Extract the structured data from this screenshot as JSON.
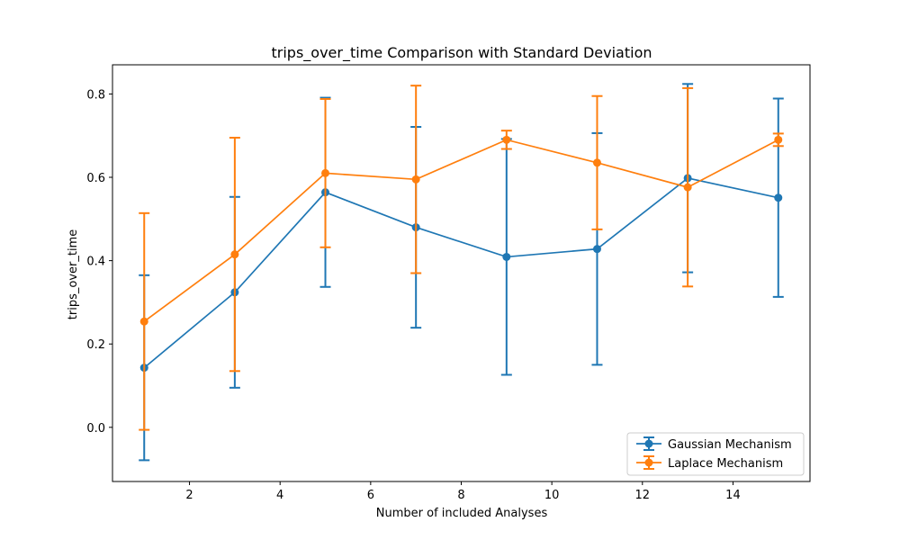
{
  "chart_data": {
    "type": "line",
    "title": "trips_over_time Comparison with Standard Deviation",
    "xlabel": "Number of included Analyses",
    "ylabel": "trips_over_time",
    "xlim": [
      0.3,
      15.7
    ],
    "ylim": [
      -0.13,
      0.87
    ],
    "x_ticks": [
      2,
      4,
      6,
      8,
      10,
      12,
      14
    ],
    "y_ticks": [
      0.0,
      0.2,
      0.4,
      0.6,
      0.8
    ],
    "x_tick_labels": [
      "2",
      "4",
      "6",
      "8",
      "10",
      "12",
      "14"
    ],
    "y_tick_labels": [
      "0.0",
      "0.2",
      "0.4",
      "0.6",
      "0.8"
    ],
    "x": [
      1,
      3,
      5,
      7,
      9,
      11,
      13,
      15
    ],
    "grid": false,
    "legend_position": "lower-right",
    "series": [
      {
        "name": "Gaussian Mechanism",
        "color": "#1f77b4",
        "values": [
          0.143,
          0.324,
          0.564,
          0.48,
          0.409,
          0.428,
          0.598,
          0.551
        ],
        "errors": [
          0.222,
          0.229,
          0.227,
          0.241,
          0.283,
          0.278,
          0.226,
          0.238
        ]
      },
      {
        "name": "Laplace Mechanism",
        "color": "#ff7f0e",
        "values": [
          0.254,
          0.415,
          0.61,
          0.595,
          0.69,
          0.635,
          0.576,
          0.69
        ],
        "errors": [
          0.26,
          0.28,
          0.178,
          0.225,
          0.022,
          0.16,
          0.238,
          0.015
        ]
      }
    ]
  }
}
